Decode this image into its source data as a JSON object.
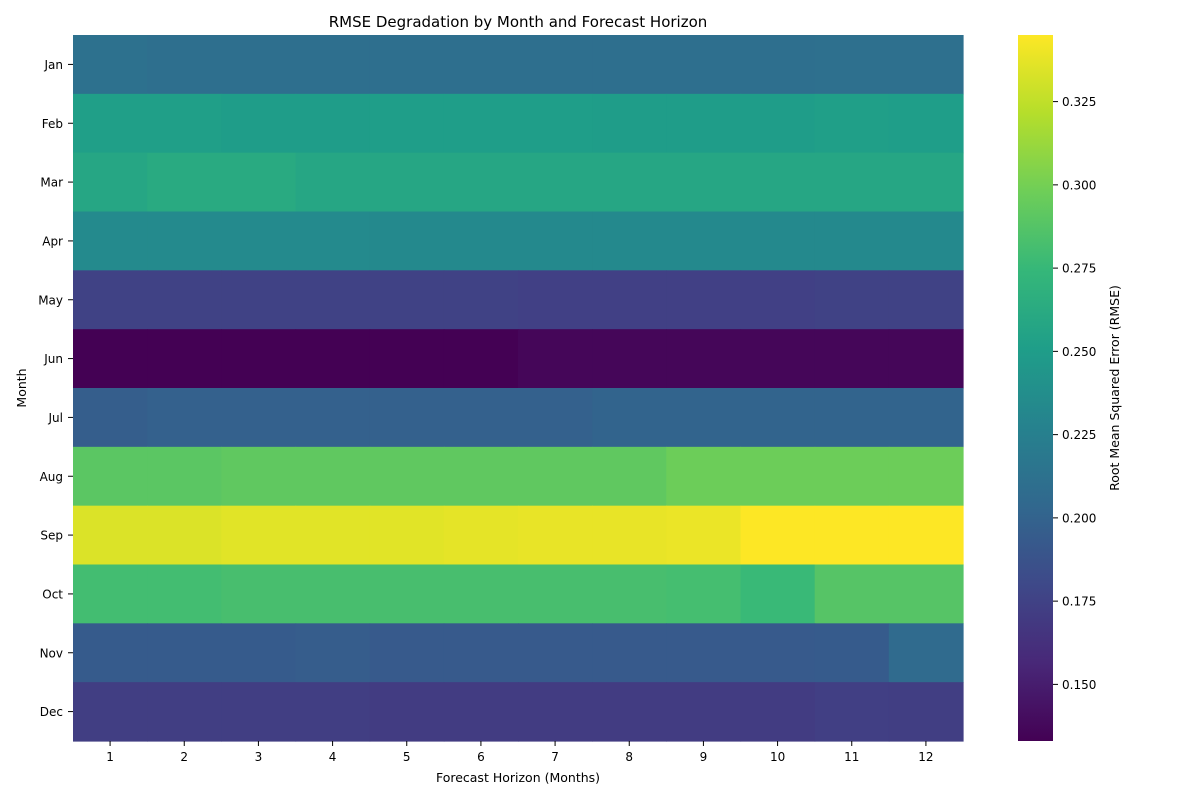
{
  "chart_data": {
    "type": "heatmap",
    "title": "RMSE Degradation by Month and Forecast Horizon",
    "xlabel": "Forecast Horizon (Months)",
    "ylabel": "Month",
    "x": [
      "1",
      "2",
      "3",
      "4",
      "5",
      "6",
      "7",
      "8",
      "9",
      "10",
      "11",
      "12"
    ],
    "y": [
      "Jan",
      "Feb",
      "Mar",
      "Apr",
      "May",
      "Jun",
      "Jul",
      "Aug",
      "Sep",
      "Oct",
      "Nov",
      "Dec"
    ],
    "values": [
      [
        0.212,
        0.21,
        0.21,
        0.21,
        0.21,
        0.21,
        0.21,
        0.21,
        0.21,
        0.21,
        0.211,
        0.211
      ],
      [
        0.252,
        0.252,
        0.25,
        0.25,
        0.251,
        0.251,
        0.251,
        0.25,
        0.25,
        0.25,
        0.252,
        0.251
      ],
      [
        0.258,
        0.262,
        0.262,
        0.258,
        0.258,
        0.258,
        0.258,
        0.258,
        0.258,
        0.258,
        0.258,
        0.258
      ],
      [
        0.234,
        0.234,
        0.234,
        0.234,
        0.233,
        0.233,
        0.233,
        0.233,
        0.233,
        0.233,
        0.233,
        0.233
      ],
      [
        0.175,
        0.175,
        0.175,
        0.175,
        0.175,
        0.175,
        0.174,
        0.174,
        0.174,
        0.174,
        0.175,
        0.175
      ],
      [
        0.133,
        0.133,
        0.133,
        0.133,
        0.133,
        0.133,
        0.136,
        0.136,
        0.136,
        0.136,
        0.136,
        0.136
      ],
      [
        0.196,
        0.198,
        0.198,
        0.198,
        0.198,
        0.198,
        0.198,
        0.201,
        0.201,
        0.201,
        0.201,
        0.201
      ],
      [
        0.29,
        0.29,
        0.292,
        0.292,
        0.292,
        0.292,
        0.292,
        0.292,
        0.297,
        0.297,
        0.297,
        0.297
      ],
      [
        0.334,
        0.334,
        0.336,
        0.336,
        0.336,
        0.337,
        0.338,
        0.338,
        0.339,
        0.345,
        0.345,
        0.345
      ],
      [
        0.28,
        0.28,
        0.282,
        0.282,
        0.282,
        0.282,
        0.282,
        0.282,
        0.281,
        0.276,
        0.288,
        0.288
      ],
      [
        0.194,
        0.194,
        0.194,
        0.195,
        0.193,
        0.193,
        0.193,
        0.193,
        0.193,
        0.193,
        0.194,
        0.206
      ],
      [
        0.172,
        0.172,
        0.172,
        0.172,
        0.171,
        0.171,
        0.171,
        0.171,
        0.171,
        0.171,
        0.173,
        0.172
      ]
    ],
    "colorbar": {
      "label": "Root Mean Squared Error (RMSE)",
      "colormap": "viridis",
      "range": [
        0.133,
        0.345
      ],
      "ticks": [
        "0.150",
        "0.175",
        "0.200",
        "0.225",
        "0.250",
        "0.275",
        "0.300",
        "0.325"
      ]
    },
    "grid": false
  }
}
